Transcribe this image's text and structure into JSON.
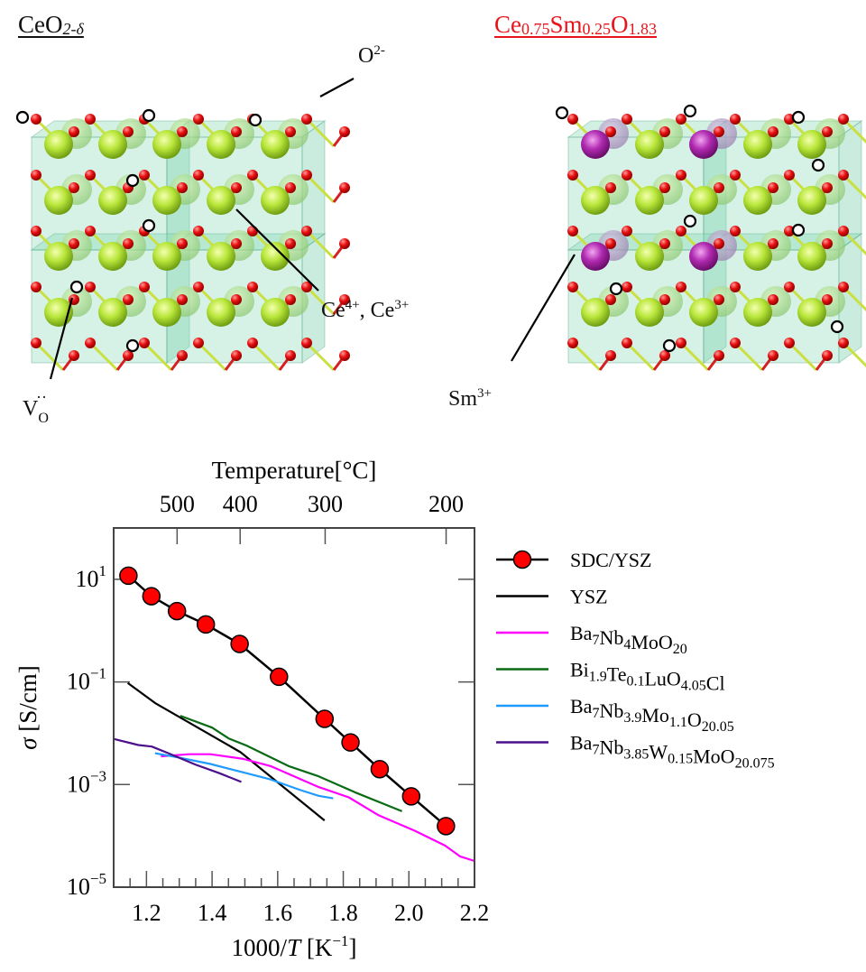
{
  "structures": {
    "left": {
      "title": {
        "main": "CeO",
        "sub": "2-δ"
      },
      "labels": {
        "oxygen": {
          "main": "O",
          "sup": "2-"
        },
        "cerium": {
          "text": "Ce",
          "sup1": "4+",
          "mid": ", Ce",
          "sup2": "3+"
        },
        "vacancy": {
          "main": "V",
          "sub": "O",
          "sup": "··"
        }
      }
    },
    "right": {
      "title": {
        "parts": [
          "Ce",
          "0.75",
          "Sm",
          "0.25",
          "O",
          "1.83"
        ]
      },
      "title_color": "#e8141b",
      "labels": {
        "samarium": {
          "main": "Sm",
          "sup": "3+"
        }
      }
    },
    "colors": {
      "ce": "#b8e63a",
      "o": "#e01010",
      "sm": "#b02ab0",
      "cell": "#7fd8b0"
    }
  },
  "chart_data": {
    "type": "line",
    "top_axis_title": "Temperature[°C]",
    "top_ticks_celsius": [
      500,
      400,
      300,
      200
    ],
    "xlabel": {
      "pre": "1000/",
      "var": "T",
      "post": " [K",
      "sup": "−1",
      "end": "]"
    },
    "ylabel": {
      "var": "σ",
      "post": " [S/cm]"
    },
    "xlim": [
      1.1,
      2.2
    ],
    "ylim_log10": [
      -5,
      2
    ],
    "xticks": [
      "1.2",
      "1.4",
      "1.6",
      "1.8",
      "2.0",
      "2.2"
    ],
    "yticks_log10": [
      1,
      -1,
      -3,
      -5
    ],
    "ytick_base": "10",
    "legend_position": "right",
    "series": [
      {
        "name": "SDC/YSZ",
        "label_parts": [
          [
            "SDC/YSZ",
            ""
          ]
        ],
        "color": "#000000",
        "marker": "circle",
        "marker_color": "#ff0000",
        "x": [
          1.145,
          1.215,
          1.293,
          1.381,
          1.484,
          1.604,
          1.743,
          1.822,
          1.911,
          2.007,
          2.113
        ],
        "log10_y": [
          1.07,
          0.67,
          0.38,
          0.12,
          -0.26,
          -0.9,
          -1.72,
          -2.18,
          -2.7,
          -3.23,
          -3.81
        ]
      },
      {
        "name": "YSZ",
        "label_parts": [
          [
            "YSZ",
            ""
          ]
        ],
        "color": "#000000",
        "x": [
          1.143,
          1.226,
          1.487,
          1.743
        ],
        "log10_y": [
          -1.02,
          -1.41,
          -2.37,
          -3.7
        ]
      },
      {
        "name": "Ba7Nb4MoO20",
        "label_parts": [
          [
            "Ba",
            "7"
          ],
          [
            "Nb",
            "4"
          ],
          [
            "MoO",
            "20"
          ]
        ],
        "color": "#ff00ff",
        "x": [
          1.244,
          1.331,
          1.395,
          1.496,
          1.578,
          1.725,
          1.817,
          1.908,
          2.018,
          2.11,
          2.156,
          2.2
        ],
        "log10_y": [
          -2.45,
          -2.41,
          -2.41,
          -2.5,
          -2.64,
          -3.05,
          -3.25,
          -3.6,
          -3.9,
          -4.19,
          -4.4,
          -4.49
        ]
      },
      {
        "name": "Bi1.9Te0.1LuO4.05Cl",
        "label_parts": [
          [
            "Bi",
            "1.9"
          ],
          [
            "Te",
            "0.1"
          ],
          [
            "LuO",
            "4.05"
          ],
          [
            "Cl",
            ""
          ]
        ],
        "color": "#0a6a14",
        "x": [
          1.303,
          1.4,
          1.45,
          1.505,
          1.633,
          1.725,
          1.835,
          1.979
        ],
        "log10_y": [
          -1.66,
          -1.89,
          -2.1,
          -2.24,
          -2.64,
          -2.84,
          -3.15,
          -3.52
        ]
      },
      {
        "name": "Ba7Nb3.9Mo1.1O20.05",
        "label_parts": [
          [
            "Ba",
            "7"
          ],
          [
            "Nb",
            "3.9"
          ],
          [
            "Mo",
            "1.1"
          ],
          [
            "O",
            "20.05"
          ]
        ],
        "color": "#1e9bff",
        "x": [
          1.226,
          1.303,
          1.395,
          1.487,
          1.578,
          1.67,
          1.725,
          1.769
        ],
        "log10_y": [
          -2.39,
          -2.48,
          -2.6,
          -2.75,
          -2.9,
          -3.11,
          -3.22,
          -3.27
        ]
      },
      {
        "name": "Ba7Nb3.85W0.15MoO20.075",
        "label_parts": [
          [
            "Ba",
            "7"
          ],
          [
            "Nb",
            "3.85"
          ],
          [
            "W",
            "0.15"
          ],
          [
            "MoO",
            "20.075"
          ]
        ],
        "color": "#4b0f8c",
        "x": [
          1.1,
          1.175,
          1.216,
          1.267,
          1.349,
          1.423,
          1.489
        ],
        "log10_y": [
          -2.11,
          -2.23,
          -2.26,
          -2.39,
          -2.61,
          -2.78,
          -2.95
        ]
      }
    ]
  }
}
